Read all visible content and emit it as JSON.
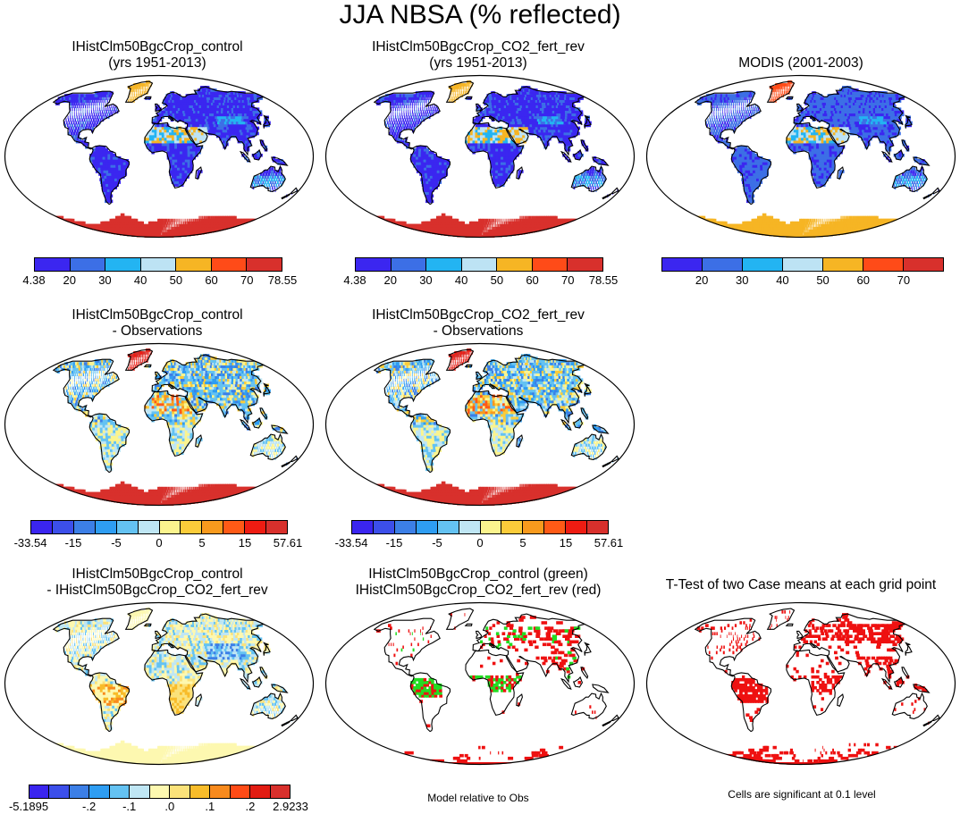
{
  "figure_title": "JJA NBSA (% reflected)",
  "colors": {
    "abs": [
      "#3b26f0",
      "#3c6fe6",
      "#23b4f2",
      "#bde3f4",
      "#f6b524",
      "#ff4b18",
      "#d8302c"
    ],
    "diff": [
      "#3a25ef",
      "#3c4fea",
      "#3c7fe6",
      "#2e9df2",
      "#64c2f2",
      "#bfe6f4",
      "#fbf48e",
      "#fbcc3a",
      "#f89a1d",
      "#ff5a16",
      "#ee1c12",
      "#d8302c"
    ],
    "pert": [
      "#3a25ef",
      "#3c4fea",
      "#3c7fe6",
      "#2e9df2",
      "#64c2f2",
      "#bfe6f4",
      "#fdf8b0",
      "#fbe27a",
      "#f8bc2a",
      "#f88a1d",
      "#ff4b16",
      "#e21c12",
      "#d8302c"
    ],
    "land_bg": "#ffffff",
    "coast": "#000000"
  },
  "panels": {
    "p1": {
      "title_lines": [
        "IHistClm50BgcCrop_control",
        "(yrs 1951-2013)"
      ]
    },
    "p2": {
      "title_lines": [
        "IHistClm50BgcCrop_CO2_fert_rev",
        "(yrs 1951-2013)"
      ]
    },
    "p3": {
      "title_lines": [
        "MODIS (2001-2003)"
      ]
    },
    "p4": {
      "title_lines": [
        "IHistClm50BgcCrop_control",
        "- Observations"
      ]
    },
    "p5": {
      "title_lines": [
        "IHistClm50BgcCrop_CO2_fert_rev",
        "- Observations"
      ]
    },
    "p6": {
      "title_lines": [
        "IHistClm50BgcCrop_control",
        "- IHistClm50BgcCrop_CO2_fert_rev"
      ]
    },
    "p7": {
      "title_lines": [
        "IHistClm50BgcCrop_control (green)",
        "IHistClm50BgcCrop_CO2_fert_rev (red)"
      ],
      "note": "Model relative to Obs"
    },
    "p8": {
      "title_lines": [
        "T-Test of two Case means at each grid point"
      ],
      "note": "Cells are significant at 0.1 level"
    }
  },
  "colorbars": {
    "abs_ticks": [
      "4.38",
      "20",
      "30",
      "40",
      "50",
      "60",
      "70",
      "78.55"
    ],
    "modis_ticks": [
      "20",
      "30",
      "40",
      "50",
      "60",
      "70"
    ],
    "diff_ticks": [
      "-33.54",
      "-15",
      "-5",
      "0",
      "5",
      "15",
      "57.61"
    ],
    "pert_ticks": [
      "-5.1895",
      "-.2",
      "-.1",
      ".0",
      ".1",
      ".2",
      "2.9233"
    ]
  }
}
